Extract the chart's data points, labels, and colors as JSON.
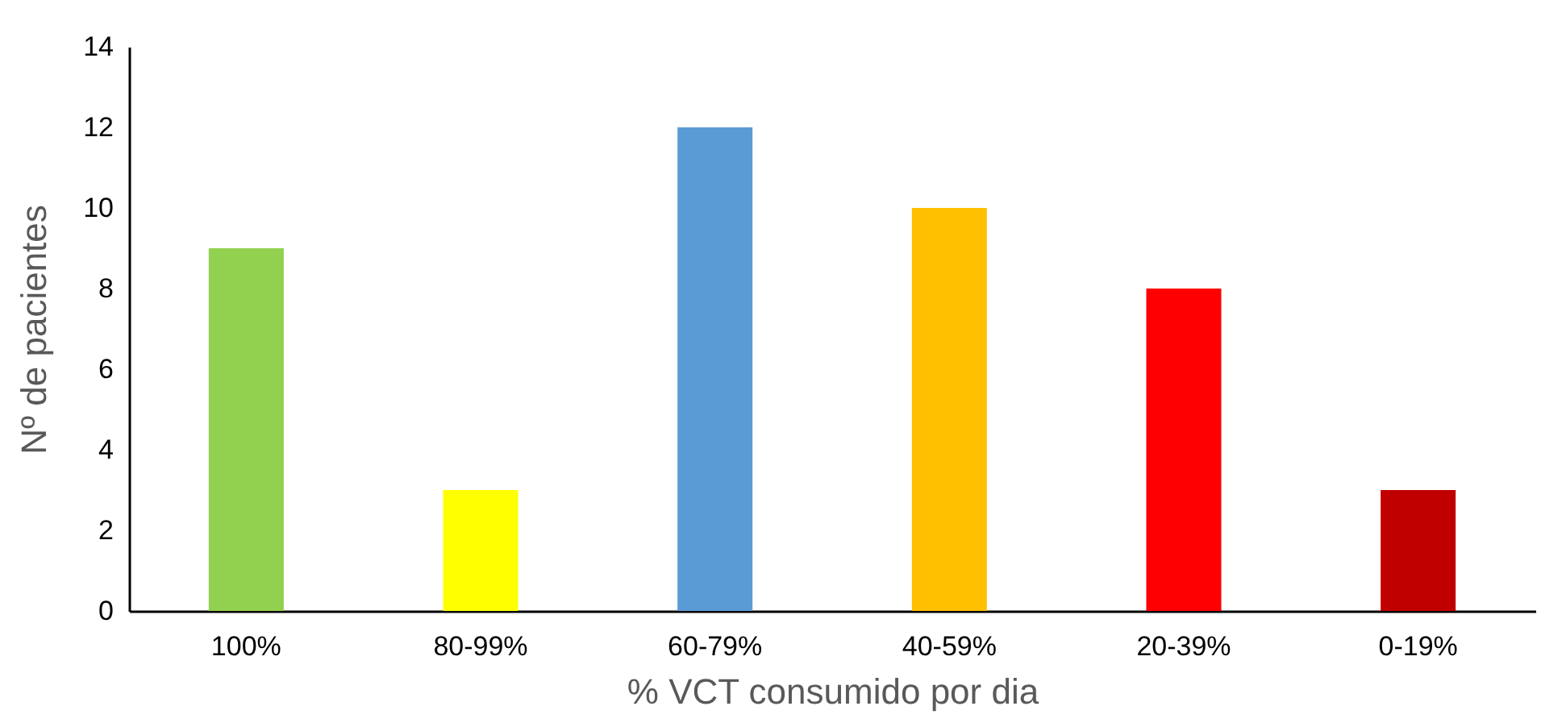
{
  "chart_data": {
    "type": "bar",
    "xlabel": "% VCT consumido por dia",
    "ylabel": "Nº de pacientes",
    "categories": [
      "100%",
      "80-99%",
      "60-79%",
      "40-59%",
      "20-39%",
      "0-19%"
    ],
    "values": [
      9,
      3,
      12,
      10,
      8,
      3
    ],
    "colors": [
      "#92d050",
      "#ffff00",
      "#5b9bd5",
      "#ffc000",
      "#ff0000",
      "#c00000"
    ],
    "ylim": [
      0,
      14
    ],
    "yticks": [
      0,
      2,
      4,
      6,
      8,
      10,
      12,
      14
    ],
    "grid": false,
    "legend": false
  }
}
